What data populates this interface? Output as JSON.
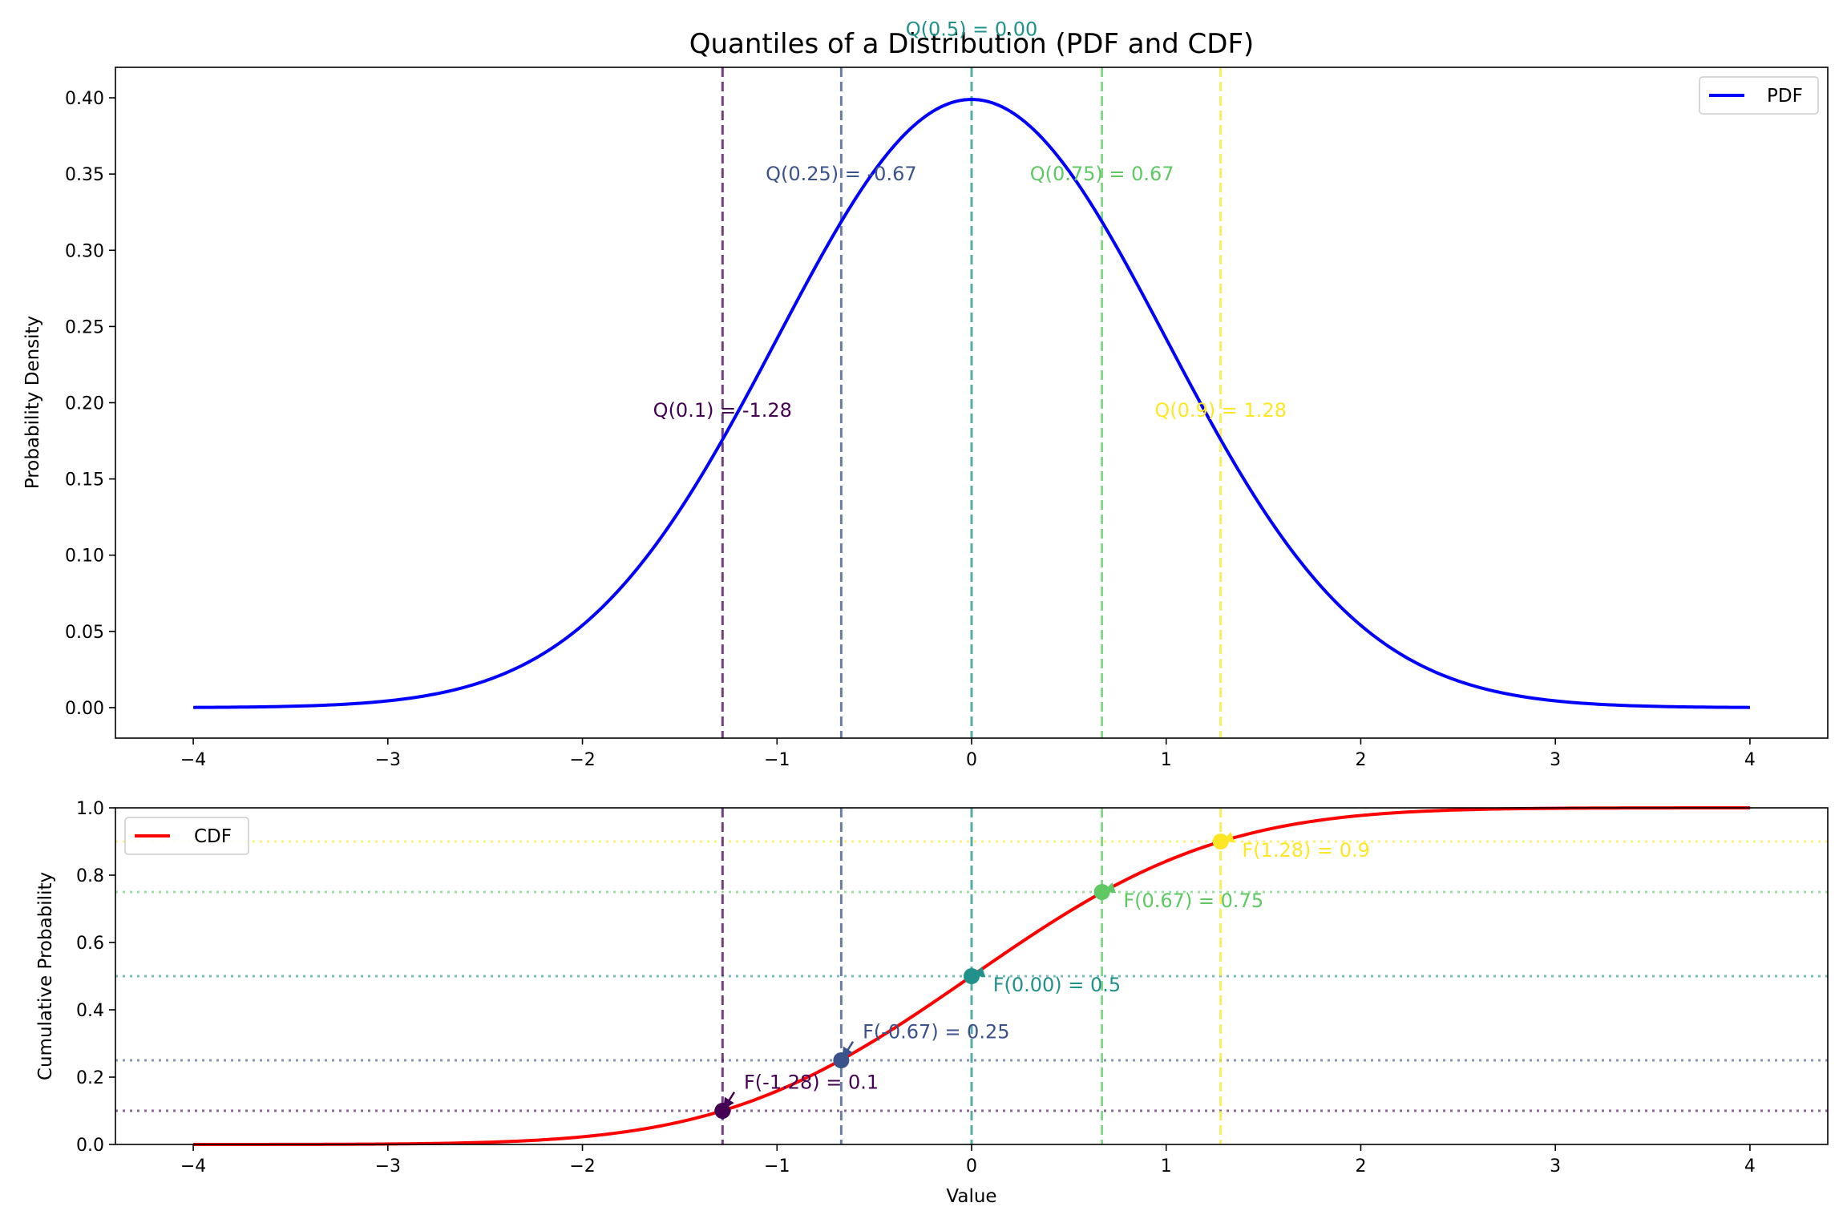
{
  "figure_title": "Quantiles of a Distribution (PDF and CDF)",
  "chart_data": [
    {
      "type": "line",
      "name": "pdf-panel",
      "distribution": "standard normal",
      "series": [
        {
          "name": "PDF",
          "color": "#0000ff",
          "x_range": [
            -4,
            4
          ]
        }
      ],
      "xlim": [
        -4.4,
        4.4
      ],
      "ylim": [
        -0.02,
        0.42
      ],
      "xticks": [
        -4,
        -3,
        -2,
        -1,
        0,
        1,
        2,
        3,
        4
      ],
      "xtick_labels": [
        "−4",
        "−3",
        "−2",
        "−1",
        "0",
        "1",
        "2",
        "3",
        "4"
      ],
      "yticks": [
        0.0,
        0.05,
        0.1,
        0.15,
        0.2,
        0.25,
        0.3,
        0.35,
        0.4
      ],
      "ytick_labels": [
        "0.00",
        "0.05",
        "0.10",
        "0.15",
        "0.20",
        "0.25",
        "0.30",
        "0.35",
        "0.40"
      ],
      "xlabel": "",
      "ylabel": "Probability Density",
      "legend": "top-right",
      "grid": false,
      "quantile_lines": [
        {
          "p": 0.1,
          "x": -1.28,
          "label": "Q(0.1) = -1.28",
          "label_y": 0.195,
          "color": "#440154"
        },
        {
          "p": 0.25,
          "x": -0.67,
          "label": "Q(0.25) = -0.67",
          "label_y": 0.35,
          "color": "#3b528b"
        },
        {
          "p": 0.5,
          "x": 0.0,
          "label": "Q(0.5) = 0.00",
          "label_y": 0.445,
          "color": "#21918c"
        },
        {
          "p": 0.75,
          "x": 0.67,
          "label": "Q(0.75) = 0.67",
          "label_y": 0.35,
          "color": "#5ec962"
        },
        {
          "p": 0.9,
          "x": 1.28,
          "label": "Q(0.9) = 1.28",
          "label_y": 0.195,
          "color": "#fde725"
        }
      ]
    },
    {
      "type": "line",
      "name": "cdf-panel",
      "distribution": "standard normal",
      "series": [
        {
          "name": "CDF",
          "color": "#ff0000",
          "x_range": [
            -4,
            4
          ]
        }
      ],
      "xlim": [
        -4.4,
        4.4
      ],
      "ylim": [
        0.0,
        1.0
      ],
      "xticks": [
        -4,
        -3,
        -2,
        -1,
        0,
        1,
        2,
        3,
        4
      ],
      "xtick_labels": [
        "−4",
        "−3",
        "−2",
        "−1",
        "0",
        "1",
        "2",
        "3",
        "4"
      ],
      "yticks": [
        0.0,
        0.2,
        0.4,
        0.6,
        0.8,
        1.0
      ],
      "ytick_labels": [
        "0.0",
        "0.2",
        "0.4",
        "0.6",
        "0.8",
        "1.0"
      ],
      "xlabel": "Value",
      "ylabel": "Cumulative Probability",
      "legend": "top-left",
      "grid": false,
      "quantile_points": [
        {
          "x": -1.28,
          "y": 0.1,
          "label": "F(-1.28) = 0.1",
          "label_x": -1.17,
          "label_y": 0.165,
          "color": "#440154"
        },
        {
          "x": -0.67,
          "y": 0.25,
          "label": "F(-0.67) = 0.25",
          "label_x": -0.56,
          "label_y": 0.315,
          "color": "#3b528b"
        },
        {
          "x": 0.0,
          "y": 0.5,
          "label": "F(0.00) = 0.5",
          "label_x": 0.11,
          "label_y": 0.455,
          "color": "#21918c"
        },
        {
          "x": 0.67,
          "y": 0.75,
          "label": "F(0.67) = 0.75",
          "label_x": 0.78,
          "label_y": 0.705,
          "color": "#5ec962"
        },
        {
          "x": 1.28,
          "y": 0.9,
          "label": "F(1.28) = 0.9",
          "label_x": 1.39,
          "label_y": 0.855,
          "color": "#fde725"
        }
      ]
    }
  ]
}
